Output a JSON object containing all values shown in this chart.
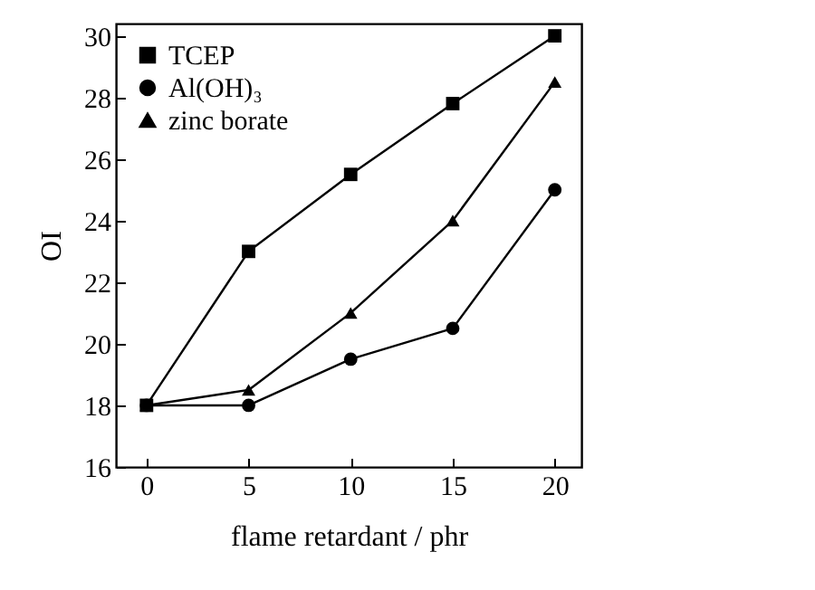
{
  "chart_data": {
    "type": "line",
    "xlabel": "flame retardant / phr",
    "ylabel": "OI",
    "x": [
      0,
      5,
      10,
      15,
      20
    ],
    "series": [
      {
        "name": "TCEP",
        "color": "#000000",
        "marker": "square",
        "values": [
          18,
          23,
          25.5,
          27.8,
          30
        ]
      },
      {
        "name": "Al(OH)₃",
        "color": "#000000",
        "marker": "circle",
        "values": [
          18,
          18,
          19.5,
          20.5,
          25
        ]
      },
      {
        "name": "zinc borate",
        "color": "#000000",
        "marker": "triangle",
        "values": [
          18,
          18.5,
          21,
          24,
          28.5
        ]
      }
    ],
    "xlim": [
      -1.5,
      21.3
    ],
    "ylim": [
      16,
      30.4
    ],
    "xticks": [
      0,
      5,
      10,
      15,
      20
    ],
    "yticks": [
      16,
      18,
      20,
      22,
      24,
      26,
      28,
      30
    ],
    "grid": false,
    "legend": "top left",
    "line_style": "solid"
  }
}
